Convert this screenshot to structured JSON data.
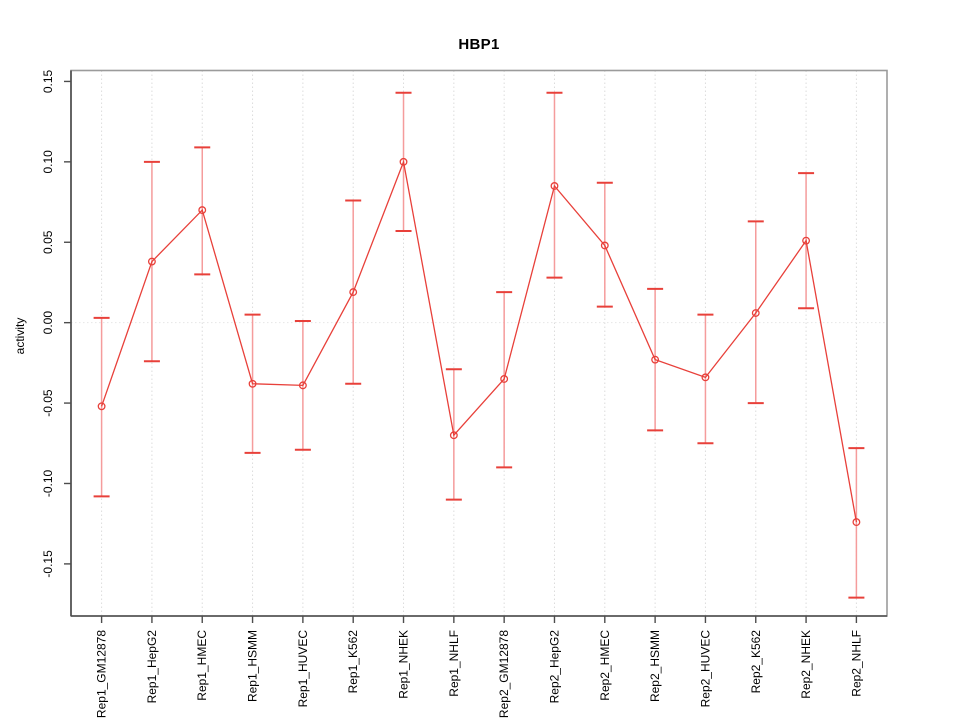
{
  "window": {
    "title": "HBP1"
  },
  "chart_data": {
    "type": "line",
    "title": "HBP1",
    "xlabel": "",
    "ylabel": "activity",
    "legend": "none",
    "grid": {
      "vertical_dotted_per_category": true,
      "horizontal_zero_line_dotted": true
    },
    "categories": [
      "Rep1_GM12878",
      "Rep1_HepG2",
      "Rep1_HMEC",
      "Rep1_HSMM",
      "Rep1_HUVEC",
      "Rep1_K562",
      "Rep1_NHEK",
      "Rep1_NHLF",
      "Rep2_GM12878",
      "Rep2_HepG2",
      "Rep2_HMEC",
      "Rep2_HSMM",
      "Rep2_HUVEC",
      "Rep2_K562",
      "Rep2_NHEK",
      "Rep2_NHLF"
    ],
    "series": [
      {
        "name": "activity",
        "marker": "open-circle",
        "values": [
          -0.052,
          0.038,
          0.07,
          -0.038,
          -0.039,
          0.019,
          0.1,
          -0.07,
          -0.035,
          0.085,
          0.048,
          -0.023,
          -0.034,
          0.006,
          0.051,
          -0.124
        ],
        "error_high": [
          0.003,
          0.1,
          0.109,
          0.005,
          0.001,
          0.076,
          0.143,
          -0.029,
          0.019,
          0.143,
          0.087,
          0.021,
          0.005,
          0.063,
          0.093,
          -0.078
        ],
        "error_low": [
          -0.108,
          -0.024,
          0.03,
          -0.081,
          -0.079,
          -0.038,
          0.057,
          -0.11,
          -0.09,
          0.028,
          0.01,
          -0.067,
          -0.075,
          -0.05,
          0.009,
          -0.171
        ]
      }
    ],
    "yticks": [
      {
        "value": 0.15,
        "label": "0.15"
      },
      {
        "value": 0.1,
        "label": "0.10"
      },
      {
        "value": 0.05,
        "label": "0.05"
      },
      {
        "value": 0.0,
        "label": "0.00"
      },
      {
        "value": -0.05,
        "label": "-0.05"
      },
      {
        "value": -0.1,
        "label": "-0.10"
      },
      {
        "value": -0.15,
        "label": "-0.15"
      }
    ],
    "ylim": [
      -0.1824,
      0.1568
    ],
    "colors": {
      "series": "#e8403a",
      "error_stem": "#f59c9c",
      "grid": "#dcdcdc",
      "zero_line": "#e6e6e6",
      "axis": "#4d4d4d",
      "box": "#9b9b9b",
      "text": "#000000",
      "background": "#ffffff"
    }
  }
}
